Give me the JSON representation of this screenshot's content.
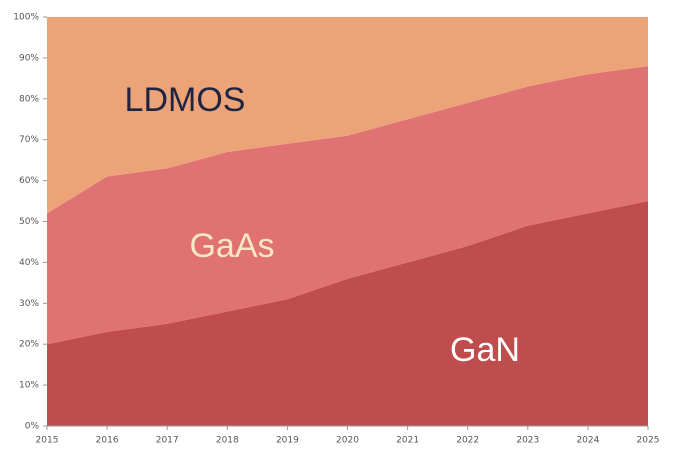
{
  "chart_data": {
    "type": "stacked_area",
    "x": [
      2015,
      2016,
      2017,
      2018,
      2019,
      2020,
      2021,
      2022,
      2023,
      2024,
      2025
    ],
    "series": [
      {
        "name": "GaN",
        "color": "#bf4d4e",
        "values": [
          20,
          23,
          25,
          28,
          31,
          36,
          40,
          44,
          49,
          52,
          55
        ]
      },
      {
        "name": "GaAs",
        "color": "#e07273",
        "values": [
          32,
          38,
          38,
          39,
          38,
          35,
          35,
          35,
          34,
          34,
          33
        ]
      },
      {
        "name": "LDMOS",
        "color": "#eca377",
        "values": [
          48,
          39,
          37,
          33,
          31,
          29,
          25,
          21,
          17,
          14,
          12
        ]
      }
    ],
    "xlim": [
      2015,
      2025
    ],
    "xticks": [
      2015,
      2016,
      2017,
      2018,
      2019,
      2020,
      2021,
      2022,
      2023,
      2024,
      2025
    ],
    "ylim": [
      0,
      100
    ],
    "yticks": [
      {
        "value": 0,
        "label": "0%"
      },
      {
        "value": 10,
        "label": "10%"
      },
      {
        "value": 20,
        "label": "20%"
      },
      {
        "value": 30,
        "label": "30%"
      },
      {
        "value": 40,
        "label": "40%"
      },
      {
        "value": 50,
        "label": "50%"
      },
      {
        "value": 60,
        "label": "60%"
      },
      {
        "value": 70,
        "label": "70%"
      },
      {
        "value": 80,
        "label": "80%"
      },
      {
        "value": 90,
        "label": "90%"
      },
      {
        "value": 100,
        "label": "100%"
      }
    ],
    "grid": false
  }
}
